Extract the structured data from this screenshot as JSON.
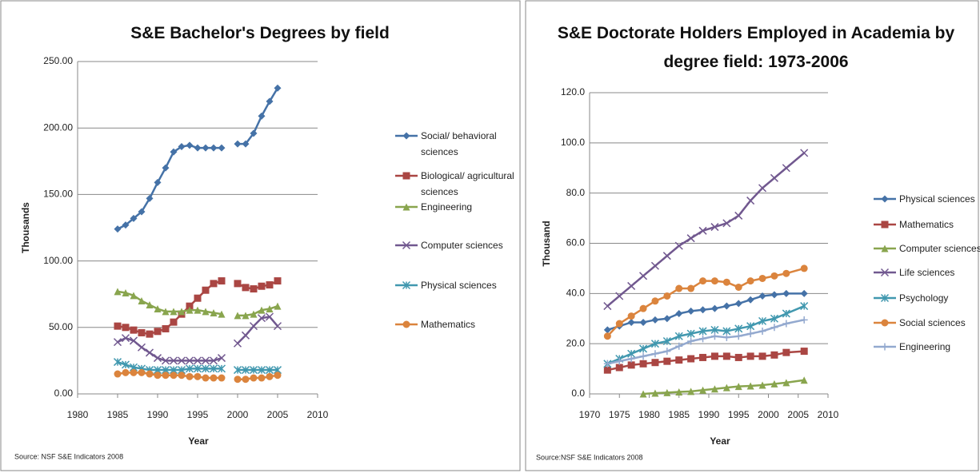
{
  "chart_data": [
    {
      "type": "line",
      "title": "S&E Bachelor's Degrees by field",
      "xlabel": "Year",
      "ylabel": "Thousands",
      "source": "Source: NSF S&E Indicators 2008",
      "x": [
        1985,
        1986,
        1987,
        1988,
        1989,
        1990,
        1991,
        1992,
        1993,
        1994,
        1995,
        1996,
        1997,
        1998,
        1999,
        2000,
        2001,
        2002,
        2003,
        2004,
        2005
      ],
      "series": [
        {
          "name": "Social/ behavioral sciences",
          "color": "#4572a7",
          "values": [
            124,
            127,
            132,
            137,
            147,
            159,
            170,
            182,
            186,
            187,
            185,
            185,
            185,
            185,
            null,
            188,
            188,
            196,
            209,
            220,
            230
          ]
        },
        {
          "name": "Biological/ agricultural sciences",
          "color": "#aa4643",
          "values": [
            51,
            50,
            48,
            46,
            45,
            47,
            49,
            54,
            60,
            66,
            72,
            78,
            83,
            85,
            null,
            83,
            80,
            79,
            81,
            82,
            85
          ]
        },
        {
          "name": "Engineering",
          "color": "#89a54e",
          "values": [
            77,
            76,
            74,
            70,
            67,
            64,
            62,
            62,
            62,
            63,
            63,
            62,
            61,
            60,
            null,
            59,
            59,
            60,
            63,
            64,
            66
          ]
        },
        {
          "name": "Computer sciences",
          "color": "#71588f",
          "values": [
            39,
            42,
            40,
            35,
            31,
            27,
            25,
            25,
            25,
            25,
            25,
            25,
            25,
            27,
            null,
            38,
            44,
            51,
            57,
            58,
            51
          ]
        },
        {
          "name": "Physical sciences",
          "color": "#4198af",
          "values": [
            24,
            22,
            20,
            19,
            18,
            18,
            18,
            18,
            18,
            19,
            19,
            19,
            19,
            19,
            null,
            18,
            18,
            18,
            18,
            18,
            18
          ]
        },
        {
          "name": "Mathematics",
          "color": "#db843d",
          "values": [
            15,
            16,
            16,
            16,
            15,
            14,
            14,
            14,
            14,
            13,
            13,
            12,
            12,
            12,
            null,
            11,
            11,
            12,
            12,
            13,
            14
          ]
        }
      ],
      "xlim": [
        1980,
        2010
      ],
      "xticks": [
        1980,
        1985,
        1990,
        1995,
        2000,
        2005,
        2010
      ],
      "ylim": [
        0,
        250
      ],
      "yticks": [
        {
          "value": 0,
          "label": "0.00"
        },
        {
          "value": 50,
          "label": "50.00"
        },
        {
          "value": 100,
          "label": "100.00"
        },
        {
          "value": 150,
          "label": "150.00"
        },
        {
          "value": 200,
          "label": "200.00"
        },
        {
          "value": 250,
          "label": "250.00"
        }
      ],
      "grid": true
    },
    {
      "type": "line",
      "title": "S&E Doctorate Holders Employed in Academia by degree field: 1973-2006",
      "xlabel": "Year",
      "ylabel": "Thousand",
      "source": "Source:NSF S&E Indicators 2008",
      "x": [
        1973,
        1975,
        1977,
        1979,
        1981,
        1983,
        1985,
        1987,
        1989,
        1991,
        1993,
        1995,
        1997,
        1999,
        2001,
        2003,
        2006
      ],
      "series": [
        {
          "name": "Physical sciences",
          "color": "#4572a7",
          "values": [
            25.5,
            27,
            28.5,
            28.5,
            29.5,
            30,
            32,
            33,
            33.5,
            34,
            35,
            36,
            37.5,
            39,
            39.5,
            40,
            40
          ]
        },
        {
          "name": "Mathematics",
          "color": "#aa4643",
          "values": [
            9.5,
            10.5,
            11.5,
            12,
            12.5,
            13,
            13.5,
            14,
            14.5,
            15,
            15,
            14.5,
            15,
            15,
            15.5,
            16.5,
            17
          ]
        },
        {
          "name": "Computer sciences",
          "color": "#89a54e",
          "values": [
            null,
            null,
            null,
            0,
            0.3,
            0.5,
            0.8,
            1,
            1.5,
            2,
            2.5,
            3,
            3.2,
            3.5,
            4,
            4.5,
            5.5
          ]
        },
        {
          "name": "Life sciences",
          "color": "#71588f",
          "values": [
            35,
            39,
            43,
            47,
            51,
            55,
            59,
            62,
            65,
            66.5,
            68,
            71,
            77,
            82,
            86,
            90,
            96
          ]
        },
        {
          "name": "Psychology",
          "color": "#4198af",
          "values": [
            12,
            14,
            16,
            18,
            20,
            21,
            23,
            24,
            25,
            25.5,
            25,
            26,
            27,
            29,
            30,
            32,
            35
          ]
        },
        {
          "name": "Social sciences",
          "color": "#db843d",
          "values": [
            23,
            28,
            31,
            34,
            37,
            39,
            42,
            42,
            45,
            45,
            44.5,
            42.5,
            45,
            46,
            47,
            48,
            50
          ]
        },
        {
          "name": "Engineering",
          "color": "#93a9cf",
          "values": [
            12,
            13,
            14,
            15,
            16,
            17,
            19,
            21,
            22,
            23,
            22.5,
            23,
            24,
            25,
            26.5,
            28,
            29.5
          ]
        }
      ],
      "xlim": [
        1970,
        2010
      ],
      "xticks": [
        1970,
        1975,
        1980,
        1985,
        1990,
        1995,
        2000,
        2005,
        2010
      ],
      "ylim": [
        0,
        120
      ],
      "yticks": [
        {
          "value": 0,
          "label": "0.0"
        },
        {
          "value": 20,
          "label": "20.0"
        },
        {
          "value": 40,
          "label": "40.0"
        },
        {
          "value": 60,
          "label": "60.0"
        },
        {
          "value": 80,
          "label": "80.0"
        },
        {
          "value": 100,
          "label": "100.0"
        },
        {
          "value": 120,
          "label": "120.0"
        }
      ],
      "grid": true
    }
  ]
}
